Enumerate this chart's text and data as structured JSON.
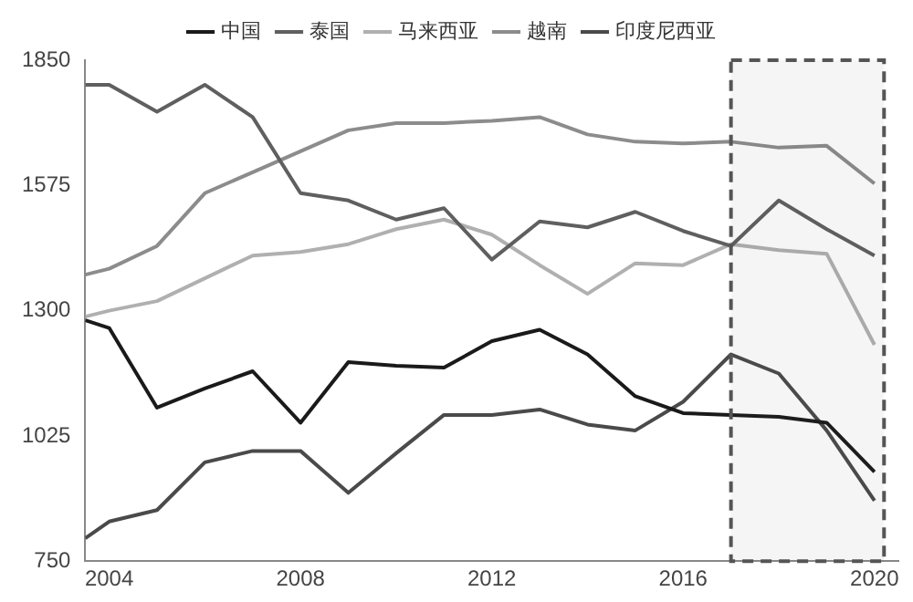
{
  "chart_data": {
    "type": "line",
    "x": [
      2003.5,
      2004,
      2005,
      2006,
      2007,
      2008,
      2009,
      2010,
      2011,
      2012,
      2013,
      2014,
      2015,
      2016,
      2017,
      2018,
      2019,
      2020
    ],
    "series": [
      {
        "name": "中国",
        "color": "#1a1a1a",
        "values": [
          1279,
          1262,
          1087,
          1129,
          1167,
          1054,
          1187,
          1179,
          1175,
          1233,
          1258,
          1204,
          1112,
          1075,
          1071,
          1067,
          1054,
          946
        ]
      },
      {
        "name": "泰国",
        "color": "#5f5f5f",
        "values": [
          1796,
          1796,
          1737,
          1796,
          1725,
          1558,
          1542,
          1500,
          1525,
          1412,
          1496,
          1483,
          1517,
          1475,
          1442,
          1542,
          1479,
          1421
        ]
      },
      {
        "name": "马来西亚",
        "color": "#b0b0b0",
        "values": [
          1287,
          1300,
          1321,
          1371,
          1421,
          1429,
          1446,
          1479,
          1500,
          1467,
          1400,
          1337,
          1404,
          1400,
          1446,
          1433,
          1425,
          1225
        ]
      },
      {
        "name": "越南",
        "color": "#8c8c8c",
        "values": [
          1379,
          1392,
          1442,
          1558,
          1604,
          1650,
          1696,
          1712,
          1712,
          1717,
          1725,
          1687,
          1671,
          1667,
          1671,
          1658,
          1662,
          1579
        ]
      },
      {
        "name": "印度尼西亚",
        "color": "#4a4a4a",
        "values": [
          800,
          837,
          862,
          967,
          992,
          992,
          900,
          987,
          1071,
          1071,
          1083,
          1050,
          1037,
          1100,
          1204,
          1162,
          1037,
          883
        ]
      }
    ],
    "xlim": [
      2003.5,
      2020.5
    ],
    "xticks": [
      2004,
      2008,
      2012,
      2016,
      2020
    ],
    "ylim": [
      750,
      1850
    ],
    "yticks": [
      750,
      1025,
      1300,
      1575,
      1850
    ],
    "bands": [
      {
        "axis": "x",
        "from": 2017,
        "to": 2020.2,
        "color": "#555555"
      }
    ],
    "grid": false,
    "legend": "top",
    "marker": "none",
    "line_style": "solid"
  }
}
